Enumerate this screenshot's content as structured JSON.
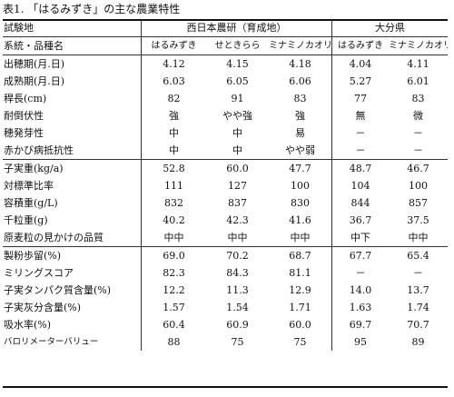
{
  "caption": "表1. 「はるみずき」の主な農業特性",
  "header": {
    "row1_label": "試験地",
    "group_a": "西日本農研（育成地）",
    "group_b": "大分県",
    "row2_label": "系統・品種名",
    "varieties": [
      "はるみずき",
      "せときらら",
      "ミナミノカオリ",
      "はるみずき",
      "ミナミノカオリ"
    ]
  },
  "rows": [
    {
      "label": "出穂期(月.日)",
      "values": [
        "4.12",
        "4.15",
        "4.18",
        "4.04",
        "4.11"
      ]
    },
    {
      "label": "成熟期(月.日)",
      "values": [
        "6.03",
        "6.05",
        "6.06",
        "5.27",
        "6.01"
      ]
    },
    {
      "label": "稈長(cm)",
      "values": [
        "82",
        "91",
        "83",
        "77",
        "83"
      ]
    },
    {
      "label": "耐倒伏性",
      "values": [
        "強",
        "やや強",
        "強",
        "無",
        "微"
      ]
    },
    {
      "label": "穂発芽性",
      "values": [
        "中",
        "中",
        "易",
        "－",
        "－"
      ]
    },
    {
      "label": "赤かび病抵抗性",
      "values": [
        "中",
        "中",
        "やや弱",
        "－",
        "－"
      ]
    },
    {
      "label": "子実重(kg/a)",
      "values": [
        "52.8",
        "60.0",
        "47.7",
        "48.7",
        "46.7"
      ]
    },
    {
      "label": "対標準比率",
      "values": [
        "111",
        "127",
        "100",
        "104",
        "100"
      ]
    },
    {
      "label": "容積重(g/L)",
      "values": [
        "832",
        "837",
        "830",
        "844",
        "857"
      ]
    },
    {
      "label": "千粒重(g)",
      "values": [
        "40.2",
        "42.3",
        "41.6",
        "36.7",
        "37.5"
      ]
    },
    {
      "label": "原麦粒の見かけの品質",
      "values": [
        "中中",
        "中中",
        "中中",
        "中下",
        "中中"
      ]
    },
    {
      "label": "製粉歩留(%)",
      "values": [
        "69.0",
        "70.2",
        "68.7",
        "67.7",
        "65.4"
      ]
    },
    {
      "label": "ミリングスコア",
      "values": [
        "82.3",
        "84.3",
        "81.1",
        "－",
        "－"
      ]
    },
    {
      "label": "子実タンパク質含量(%)",
      "values": [
        "12.2",
        "11.3",
        "12.9",
        "14.0",
        "13.7"
      ]
    },
    {
      "label": "子実灰分含量(%)",
      "values": [
        "1.57",
        "1.54",
        "1.71",
        "1.63",
        "1.74"
      ]
    },
    {
      "label": "吸水率(%)",
      "values": [
        "60.4",
        "60.9",
        "60.0",
        "69.7",
        "70.7"
      ]
    },
    {
      "label": "バロリメーターバリュー",
      "values": [
        "88",
        "75",
        "75",
        "95",
        "89"
      ]
    }
  ]
}
